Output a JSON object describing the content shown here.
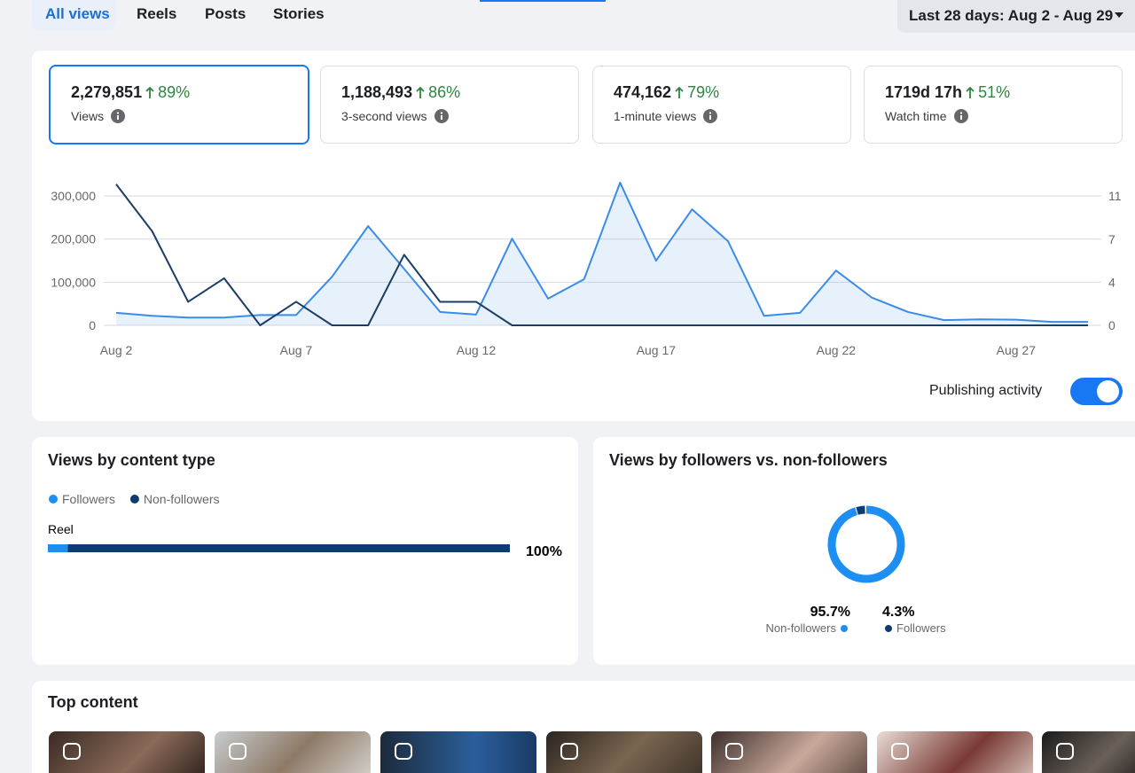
{
  "tabs": [
    "All views",
    "Reels",
    "Posts",
    "Stories"
  ],
  "date_range": "Last 28 days: Aug 2 - Aug 29",
  "metrics": [
    {
      "value": "2,279,851",
      "change": "89%",
      "label": "Views"
    },
    {
      "value": "1,188,493",
      "change": "86%",
      "label": "3-second views"
    },
    {
      "value": "474,162",
      "change": "79%",
      "label": "1-minute views"
    },
    {
      "value": "1719d 17h",
      "change": "51%",
      "label": "Watch time"
    }
  ],
  "chart_data": {
    "type": "line",
    "categories": [
      "Aug 2",
      null,
      null,
      null,
      null,
      "Aug 7",
      null,
      null,
      null,
      null,
      "Aug 12",
      null,
      null,
      null,
      null,
      "Aug 17",
      null,
      null,
      null,
      null,
      "Aug 22",
      null,
      null,
      null,
      null,
      "Aug 27",
      null,
      null
    ],
    "series": [
      {
        "color": "#3b8be8",
        "fill": true,
        "values": [
          29000,
          22000,
          18000,
          18000,
          24000,
          24000,
          113000,
          230000,
          131000,
          31000,
          25000,
          201000,
          62000,
          107000,
          331000,
          150000,
          269000,
          195000,
          22000,
          29000,
          127000,
          64000,
          31000,
          12000,
          14000,
          13000,
          8000,
          8000
        ]
      },
      {
        "color": "#1c3d66",
        "axis": "y2",
        "values": [
          12,
          8,
          2,
          4,
          0,
          2,
          0,
          0,
          6,
          2,
          2,
          0,
          0,
          0,
          0,
          0,
          0,
          0,
          0,
          0,
          0,
          0,
          0,
          0,
          0,
          0,
          0,
          0
        ]
      }
    ],
    "ylim": [
      0,
      340000
    ],
    "yticks": [
      0,
      {
        "value": 100000,
        "label": "100,000"
      },
      {
        "value": 200000,
        "label": "200,000"
      },
      {
        "value": 300000,
        "label": "300,000"
      }
    ],
    "y2lim": [
      0,
      12.47
    ],
    "y2ticks": [
      0,
      {
        "value": 3.67,
        "label": "4"
      },
      {
        "value": 7.33,
        "label": "7"
      },
      {
        "value": 11,
        "label": "11"
      }
    ],
    "grid": true
  },
  "toggle_label": "Publishing activity",
  "content_type": {
    "title": "Views by content type",
    "legend": [
      {
        "name": "Followers",
        "color": "#1d8ef2"
      },
      {
        "name": "Non-followers",
        "color": "#0f3b73"
      }
    ],
    "rows": [
      {
        "label": "Reel",
        "values": [
          4.3,
          95.7
        ],
        "total": "100%"
      }
    ]
  },
  "followers": {
    "title": "Views by followers vs. non-followers",
    "segments": [
      {
        "name": "Non-followers",
        "value": 95.7,
        "value_label": "95.7%",
        "color": "#1d8ef2"
      },
      {
        "name": "Followers",
        "value": 4.3,
        "value_label": "4.3%",
        "color": "#0f3b73"
      }
    ]
  },
  "top_content": {
    "title": "Top content"
  }
}
